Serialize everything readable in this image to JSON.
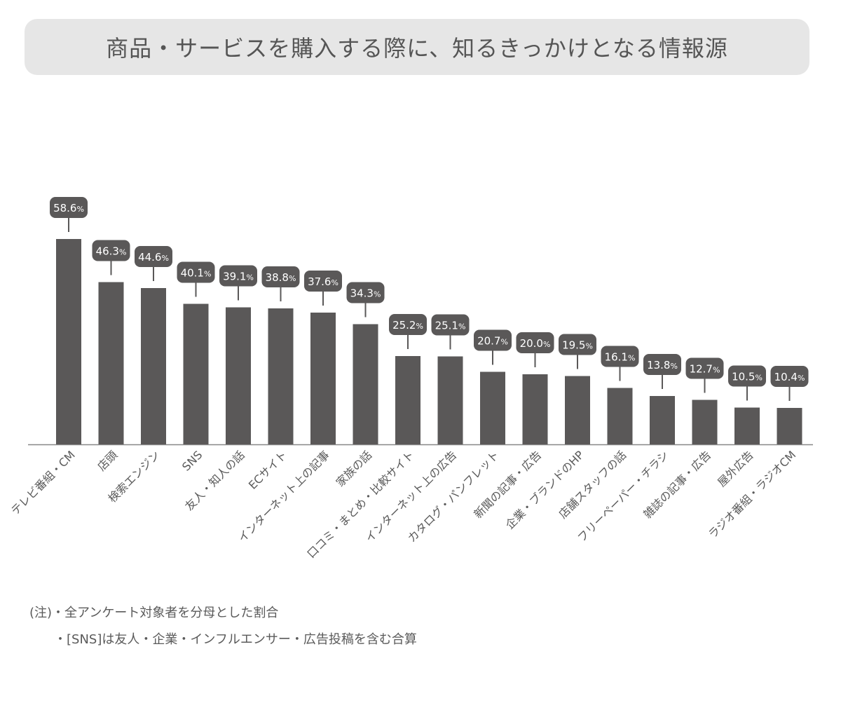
{
  "title": "商品・サービスを購入する際に、知るきっかけとなる情報源",
  "chart_data": {
    "type": "bar",
    "unit": "%",
    "categories": [
      "テレビ番組・CM",
      "店頭",
      "検索エンジン",
      "SNS",
      "友人・知人の話",
      "ECサイト",
      "インターネット上の記事",
      "家族の話",
      "口コミ・まとめ・比較サイト",
      "インターネット上の広告",
      "カタログ・パンフレット",
      "新聞の記事・広告",
      "企業・ブランドのHP",
      "店舗スタッフの話",
      "フリーペーパー・チラシ",
      "雑誌の記事・広告",
      "屋外広告",
      "ラジオ番組・ラジオCM"
    ],
    "values": [
      58.6,
      46.3,
      44.6,
      40.1,
      39.1,
      38.8,
      37.6,
      34.3,
      25.2,
      25.1,
      20.7,
      20.0,
      19.5,
      16.1,
      13.8,
      12.7,
      10.5,
      10.4
    ],
    "value_labels": [
      "58.6",
      "46.3",
      "44.6",
      "40.1",
      "39.1",
      "38.8",
      "37.6",
      "34.3",
      "25.2",
      "25.1",
      "20.7",
      "20.0",
      "19.5",
      "16.1",
      "13.8",
      "12.7",
      "10.5",
      "10.4"
    ],
    "bar_color": "#5a5858",
    "label_bg_color": "#5a5858",
    "label_text_color": "#ffffff",
    "axis_color": "#888888",
    "grid": false,
    "legend": "none"
  },
  "notes": [
    "(注)・全アンケート対象者を分母とした割合",
    "・[SNS]は友人・企業・インフルエンサー・広告投稿を含む合算"
  ]
}
